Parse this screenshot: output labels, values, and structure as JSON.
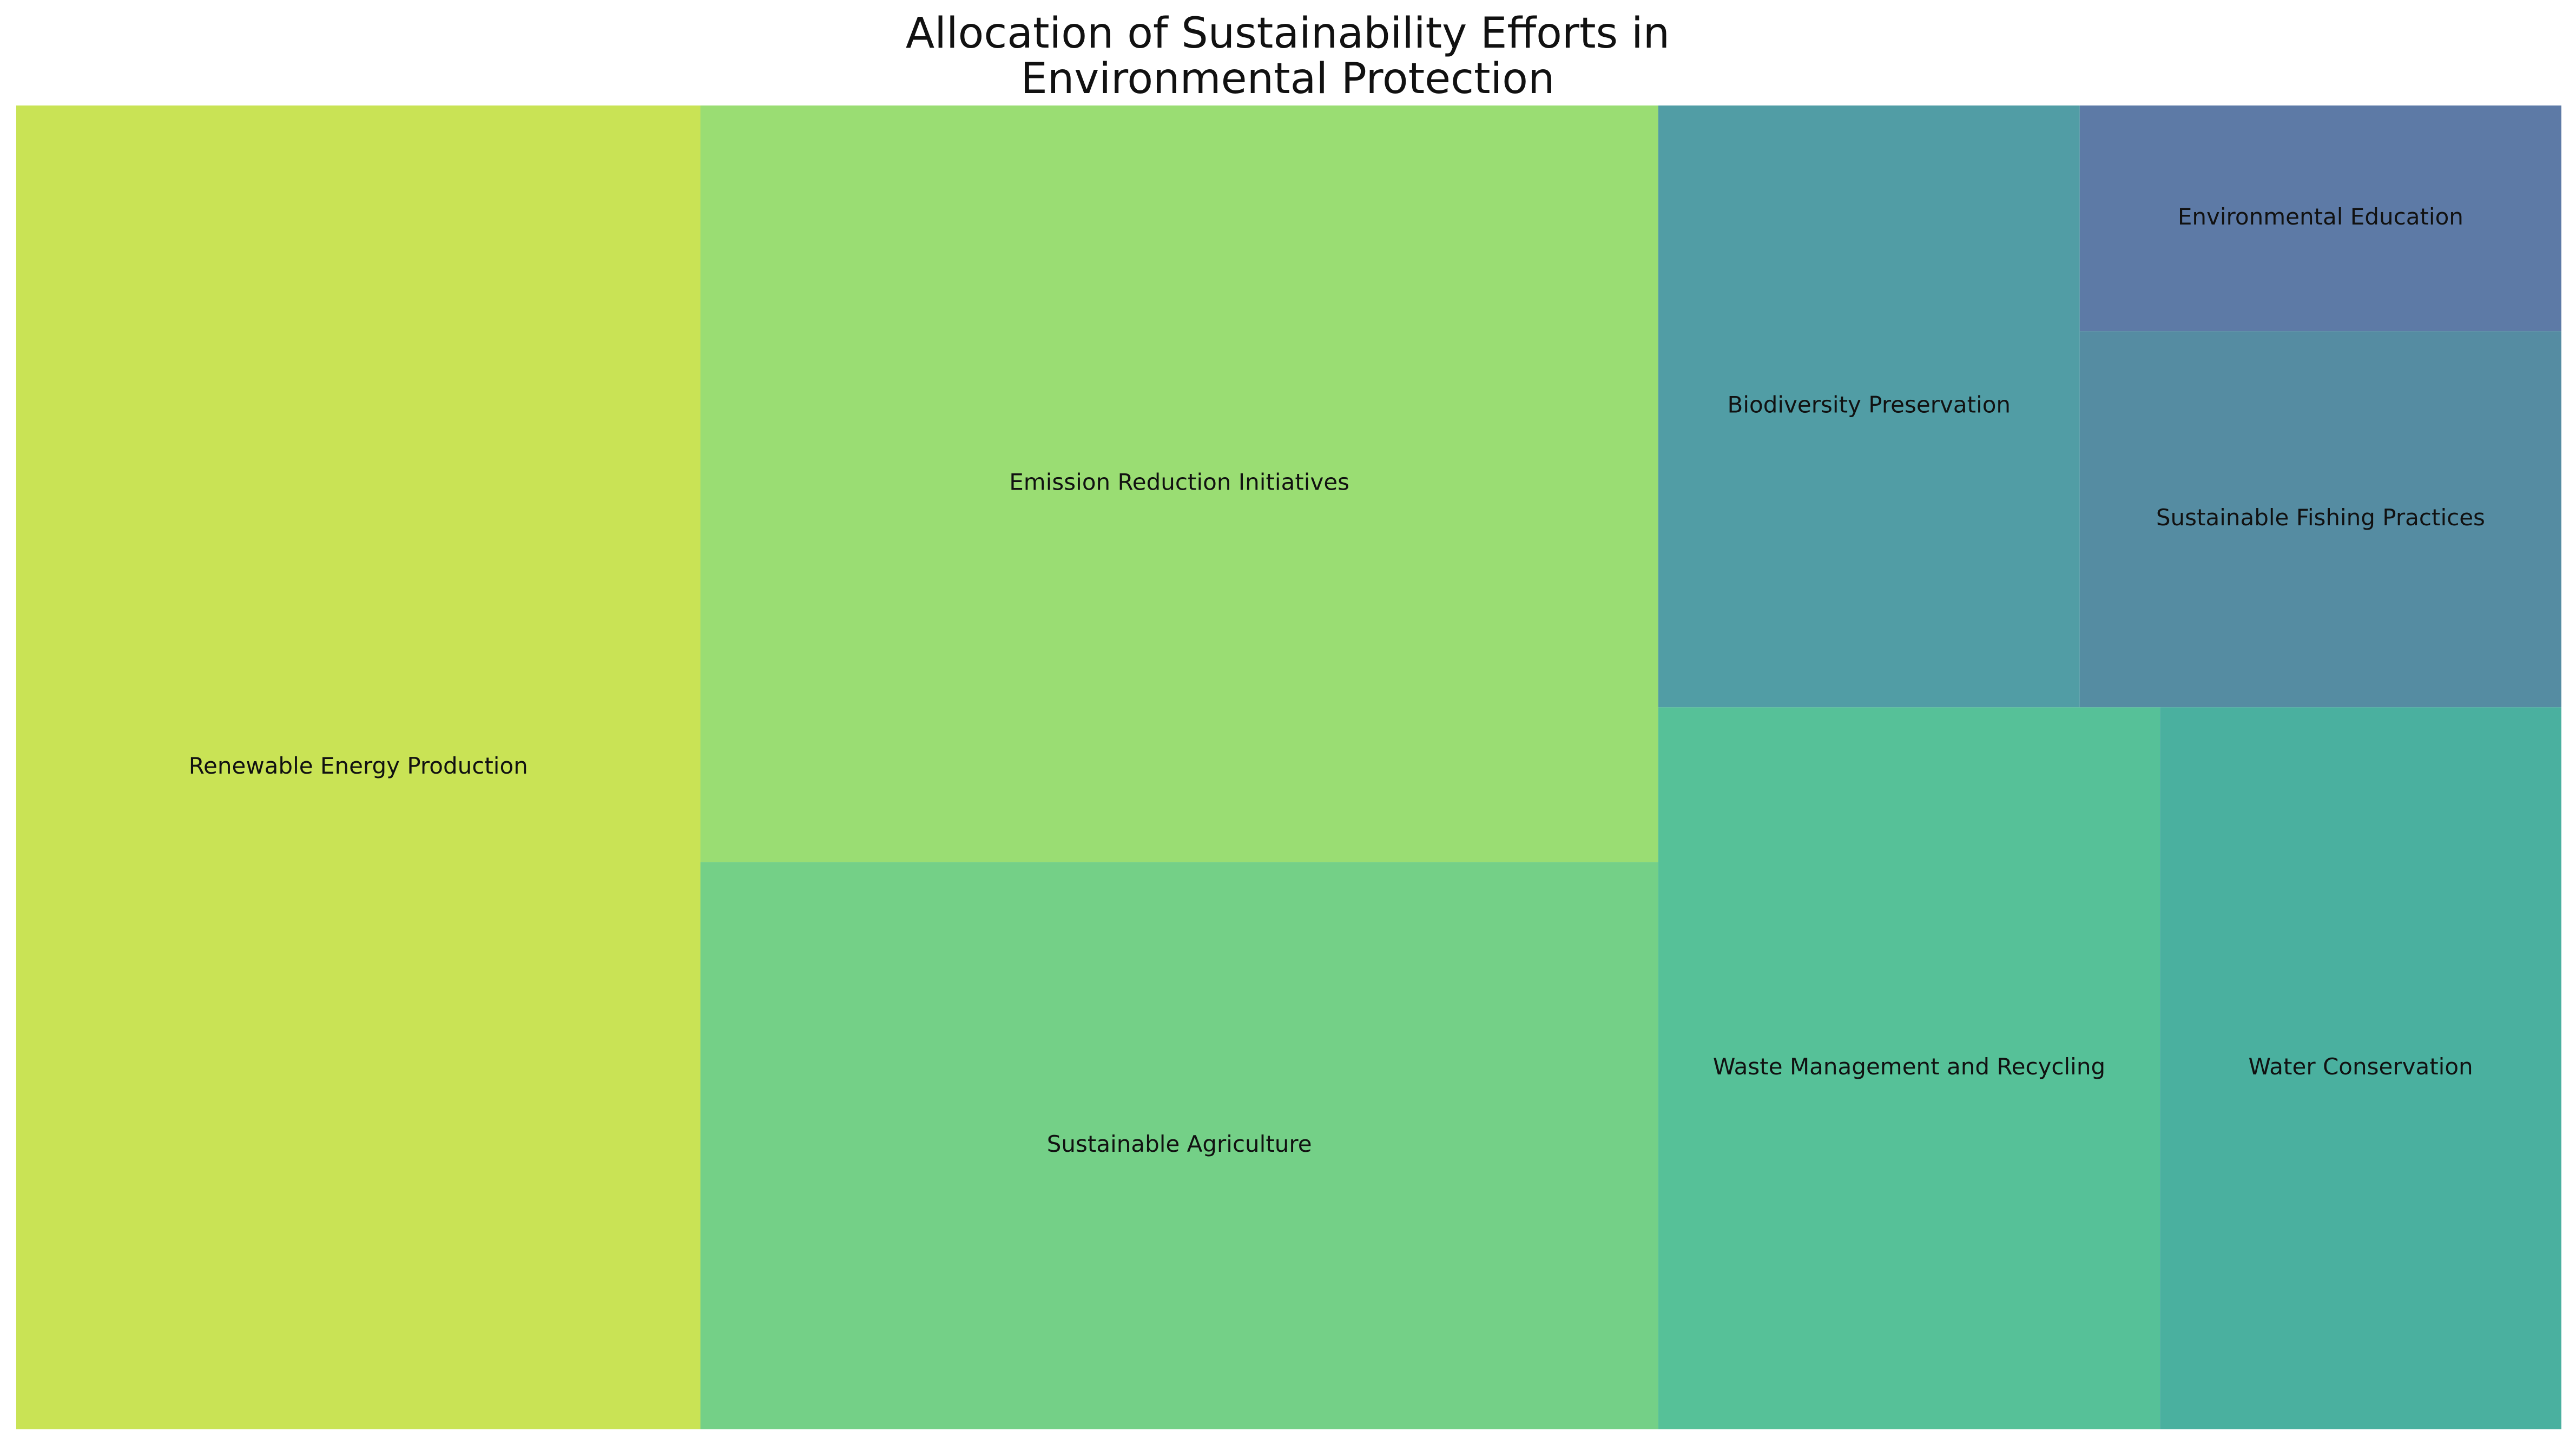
{
  "chart_data": {
    "type": "treemap",
    "title_lines": [
      "Allocation of Sustainability Efforts in",
      "Environmental Protection"
    ],
    "categories": [
      "Renewable Energy Production",
      "Emission Reduction Initiatives",
      "Sustainable Agriculture",
      "Waste Management and Recycling",
      "Water Conservation",
      "Biodiversity Preservation",
      "Sustainable Fishing Practices",
      "Environmental Education"
    ],
    "values": [
      25,
      20,
      15,
      10,
      8,
      7,
      5,
      3
    ],
    "colors": [
      "#c9e355",
      "#9add73",
      "#74d087",
      "#56c198",
      "#4ab09f",
      "#519da5",
      "#558ca2",
      "#5d7aa6"
    ],
    "legend": "none",
    "grid": false
  }
}
